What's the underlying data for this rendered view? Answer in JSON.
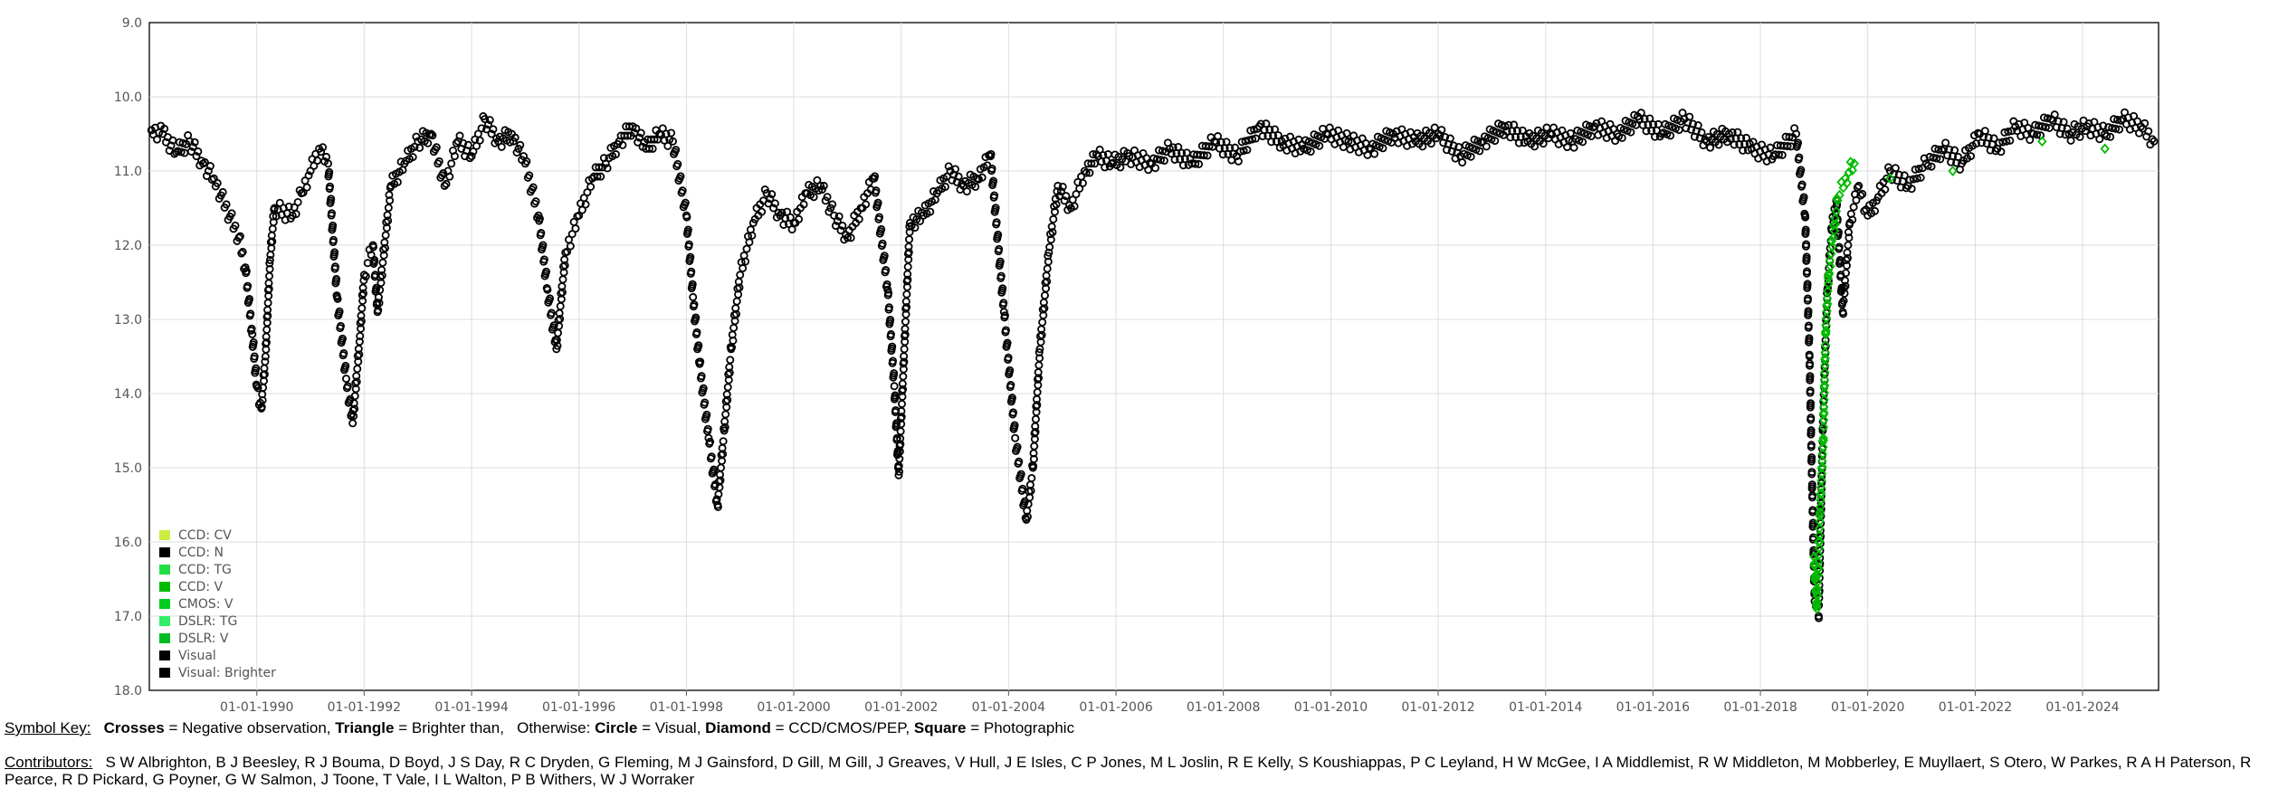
{
  "chart_data": {
    "type": "scatter",
    "y_reversed": true,
    "ylim": [
      9.0,
      18.0
    ],
    "xlim": [
      "1988-01-01",
      "2025-06-01"
    ],
    "grid": true,
    "yticks": [
      "9.0",
      "10.0",
      "11.0",
      "12.0",
      "13.0",
      "14.0",
      "15.0",
      "16.0",
      "17.0",
      "18.0"
    ],
    "xticks": [
      "01-01-1990",
      "01-01-1992",
      "01-01-1994",
      "01-01-1996",
      "01-01-1998",
      "01-01-2000",
      "01-01-2002",
      "01-01-2004",
      "01-01-2006",
      "01-01-2008",
      "01-01-2010",
      "01-01-2012",
      "01-01-2014",
      "01-01-2016",
      "01-01-2018",
      "01-01-2020",
      "01-01-2022",
      "01-01-2024"
    ],
    "legend_position": "bottom-left",
    "legend": [
      {
        "label": "CCD: CV",
        "color": "#ccee44"
      },
      {
        "label": "CCD: N",
        "color": "#000000"
      },
      {
        "label": "CCD: TG",
        "color": "#22dd44"
      },
      {
        "label": "CCD: V",
        "color": "#00bb00"
      },
      {
        "label": "CMOS: V",
        "color": "#00cc22"
      },
      {
        "label": "DSLR: TG",
        "color": "#33ee66"
      },
      {
        "label": "DSLR: V",
        "color": "#00bb22"
      },
      {
        "label": "Visual",
        "color": "#000000"
      },
      {
        "label": "Visual: Brighter",
        "color": "#000000"
      }
    ],
    "series": [
      {
        "legend_label": "Visual",
        "marker": "circle",
        "color": "#000000",
        "points": [
          [
            "1988-01-15",
            10.45
          ],
          [
            "1988-04-01",
            10.5
          ],
          [
            "1988-07-01",
            10.75
          ],
          [
            "1988-10-01",
            10.6
          ],
          [
            "1989-01-01",
            10.9
          ],
          [
            "1989-03-15",
            11.1
          ],
          [
            "1989-09-01",
            11.9
          ],
          [
            "1989-10-15",
            12.3
          ],
          [
            "1989-12-01",
            13.2
          ],
          [
            "1990-01-01",
            13.9
          ],
          [
            "1990-02-01",
            14.2
          ],
          [
            "1990-03-01",
            13.5
          ],
          [
            "1990-04-01",
            12.2
          ],
          [
            "1990-05-01",
            11.5
          ],
          [
            "1990-09-01",
            11.6
          ],
          [
            "1990-11-01",
            11.3
          ],
          [
            "1991-01-01",
            11.0
          ],
          [
            "1991-03-01",
            10.7
          ],
          [
            "1991-05-01",
            10.9
          ],
          [
            "1991-07-01",
            12.7
          ],
          [
            "1991-09-01",
            13.8
          ],
          [
            "1991-10-15",
            14.4
          ],
          [
            "1991-12-01",
            13.3
          ],
          [
            "1992-01-01",
            12.4
          ],
          [
            "1992-03-01",
            12.0
          ],
          [
            "1992-04-01",
            12.9
          ],
          [
            "1992-07-01",
            11.2
          ],
          [
            "1992-10-01",
            10.9
          ],
          [
            "1993-01-01",
            10.6
          ],
          [
            "1993-04-01",
            10.5
          ],
          [
            "1993-07-01",
            11.2
          ],
          [
            "1993-10-01",
            10.6
          ],
          [
            "1994-01-01",
            10.8
          ],
          [
            "1994-04-01",
            10.3
          ],
          [
            "1994-07-01",
            10.6
          ],
          [
            "1994-10-01",
            10.5
          ],
          [
            "1995-01-01",
            10.9
          ],
          [
            "1995-04-01",
            11.6
          ],
          [
            "1995-06-01",
            12.6
          ],
          [
            "1995-08-01",
            13.4
          ],
          [
            "1995-10-01",
            12.1
          ],
          [
            "1996-01-01",
            11.6
          ],
          [
            "1996-04-01",
            11.1
          ],
          [
            "1996-07-01",
            10.9
          ],
          [
            "1996-10-01",
            10.6
          ],
          [
            "1997-01-01",
            10.4
          ],
          [
            "1997-04-01",
            10.7
          ],
          [
            "1997-07-01",
            10.5
          ],
          [
            "1997-10-01",
            10.6
          ],
          [
            "1998-01-01",
            11.6
          ],
          [
            "1998-02-15",
            12.7
          ],
          [
            "1998-04-01",
            13.6
          ],
          [
            "1998-06-01",
            14.6
          ],
          [
            "1998-08-01",
            15.5
          ],
          [
            "1998-09-15",
            14.5
          ],
          [
            "1998-11-01",
            13.4
          ],
          [
            "1999-01-01",
            12.4
          ],
          [
            "1999-04-01",
            11.7
          ],
          [
            "1999-07-01",
            11.3
          ],
          [
            "1999-10-01",
            11.6
          ],
          [
            "2000-01-01",
            11.7
          ],
          [
            "2000-04-01",
            11.3
          ],
          [
            "2000-07-01",
            11.2
          ],
          [
            "2000-10-01",
            11.6
          ],
          [
            "2001-01-01",
            11.9
          ],
          [
            "2001-04-01",
            11.5
          ],
          [
            "2001-07-01",
            11.1
          ],
          [
            "2001-10-01",
            12.6
          ],
          [
            "2001-11-15",
            13.9
          ],
          [
            "2001-12-15",
            15.1
          ],
          [
            "2002-03-01",
            11.7
          ],
          [
            "2002-06-01",
            11.6
          ],
          [
            "2002-09-01",
            11.3
          ],
          [
            "2002-12-01",
            11.0
          ],
          [
            "2003-03-01",
            11.2
          ],
          [
            "2003-06-01",
            11.1
          ],
          [
            "2003-09-01",
            10.8
          ],
          [
            "2003-12-01",
            12.9
          ],
          [
            "2004-02-15",
            14.6
          ],
          [
            "2004-05-01",
            15.7
          ],
          [
            "2004-06-15",
            15.0
          ],
          [
            "2004-08-01",
            13.4
          ],
          [
            "2004-10-01",
            12.1
          ],
          [
            "2004-12-01",
            11.2
          ],
          [
            "2005-03-01",
            11.5
          ],
          [
            "2005-06-01",
            11.0
          ],
          [
            "2005-09-01",
            10.8
          ],
          [
            "2005-12-01",
            10.9
          ],
          [
            "2006-04-01",
            10.8
          ],
          [
            "2006-09-01",
            10.9
          ],
          [
            "2007-01-01",
            10.7
          ],
          [
            "2007-06-01",
            10.9
          ],
          [
            "2007-11-01",
            10.6
          ],
          [
            "2008-04-01",
            10.8
          ],
          [
            "2008-09-01",
            10.4
          ],
          [
            "2009-02-01",
            10.6
          ],
          [
            "2009-07-01",
            10.7
          ],
          [
            "2009-12-01",
            10.5
          ],
          [
            "2010-05-01",
            10.6
          ],
          [
            "2010-10-01",
            10.7
          ],
          [
            "2011-03-01",
            10.5
          ],
          [
            "2011-08-01",
            10.6
          ],
          [
            "2012-01-01",
            10.5
          ],
          [
            "2012-06-01",
            10.8
          ],
          [
            "2012-11-01",
            10.6
          ],
          [
            "2013-04-01",
            10.4
          ],
          [
            "2013-09-01",
            10.6
          ],
          [
            "2014-02-01",
            10.5
          ],
          [
            "2014-07-01",
            10.6
          ],
          [
            "2014-12-01",
            10.4
          ],
          [
            "2015-05-01",
            10.5
          ],
          [
            "2015-10-01",
            10.3
          ],
          [
            "2016-03-01",
            10.5
          ],
          [
            "2016-08-01",
            10.3
          ],
          [
            "2017-01-01",
            10.6
          ],
          [
            "2017-06-01",
            10.5
          ],
          [
            "2017-11-01",
            10.7
          ],
          [
            "2018-04-01",
            10.8
          ],
          [
            "2018-09-01",
            10.5
          ],
          [
            "2018-11-01",
            11.6
          ],
          [
            "2018-12-01",
            13.5
          ],
          [
            "2018-12-20",
            15.4
          ],
          [
            "2019-01-05",
            16.8
          ],
          [
            "2019-02-01",
            17.0
          ],
          [
            "2019-03-01",
            14.5
          ],
          [
            "2019-04-01",
            12.6
          ],
          [
            "2019-05-01",
            11.8
          ],
          [
            "2019-06-01",
            11.4
          ],
          [
            "2019-07-15",
            12.9
          ],
          [
            "2019-09-01",
            11.7
          ],
          [
            "2019-11-01",
            11.2
          ],
          [
            "2020-01-01",
            11.6
          ],
          [
            "2020-03-01",
            11.4
          ],
          [
            "2020-06-01",
            11.0
          ],
          [
            "2020-10-01",
            11.2
          ],
          [
            "2021-02-01",
            10.9
          ],
          [
            "2021-06-01",
            10.7
          ],
          [
            "2021-10-01",
            10.9
          ],
          [
            "2022-02-01",
            10.5
          ],
          [
            "2022-06-01",
            10.7
          ],
          [
            "2022-10-01",
            10.4
          ],
          [
            "2023-02-01",
            10.5
          ],
          [
            "2023-06-01",
            10.3
          ],
          [
            "2023-10-01",
            10.5
          ],
          [
            "2024-02-01",
            10.4
          ],
          [
            "2024-06-01",
            10.5
          ],
          [
            "2024-10-01",
            10.3
          ],
          [
            "2025-02-01",
            10.4
          ],
          [
            "2025-05-01",
            10.6
          ]
        ]
      },
      {
        "legend_label": "CCD: V",
        "marker": "diamond",
        "color": "#00bb00",
        "points": [
          [
            "2019-01-01",
            16.2
          ],
          [
            "2019-01-20",
            16.9
          ],
          [
            "2019-02-10",
            15.6
          ],
          [
            "2019-03-05",
            14.6
          ],
          [
            "2019-03-20",
            13.2
          ],
          [
            "2019-04-10",
            12.4
          ],
          [
            "2019-05-10",
            11.9
          ],
          [
            "2019-06-10",
            11.4
          ],
          [
            "2019-08-01",
            11.1
          ],
          [
            "2019-10-01",
            10.9
          ],
          [
            "2020-06-01",
            11.1
          ],
          [
            "2021-08-01",
            11.0
          ],
          [
            "2023-04-01",
            10.6
          ],
          [
            "2024-06-01",
            10.7
          ]
        ]
      }
    ]
  },
  "symbol_key": {
    "label": "Symbol Key:",
    "crosses": "Crosses",
    "crosses_text": "= Negative observation,",
    "triangle": "Triangle",
    "triangle_text": "= Brighter than,",
    "otherwise": "Otherwise:",
    "circle": "Circle",
    "circle_text": "= Visual,",
    "diamond": "Diamond",
    "diamond_text": "= CCD/CMOS/PEP,",
    "square": "Square",
    "square_text": "= Photographic"
  },
  "contributors": {
    "label": "Contributors:",
    "names": "S W Albrighton, B J Beesley, R J Bouma, D Boyd, J S Day, R C Dryden, G Fleming, M J Gainsford, D Gill, M Gill, J Greaves, V Hull, J E Isles, C P Jones, M L Joslin, R E Kelly, S Koushiappas, P C Leyland, H W McGee, I A Middlemist, R W Middleton, M Mobberley, E Muyllaert, S Otero, W Parkes, R A H Paterson, R Pearce, R D Pickard, G Poyner, G W Salmon, J Toone, T Vale, I L Walton, P B Withers, W J Worraker"
  }
}
